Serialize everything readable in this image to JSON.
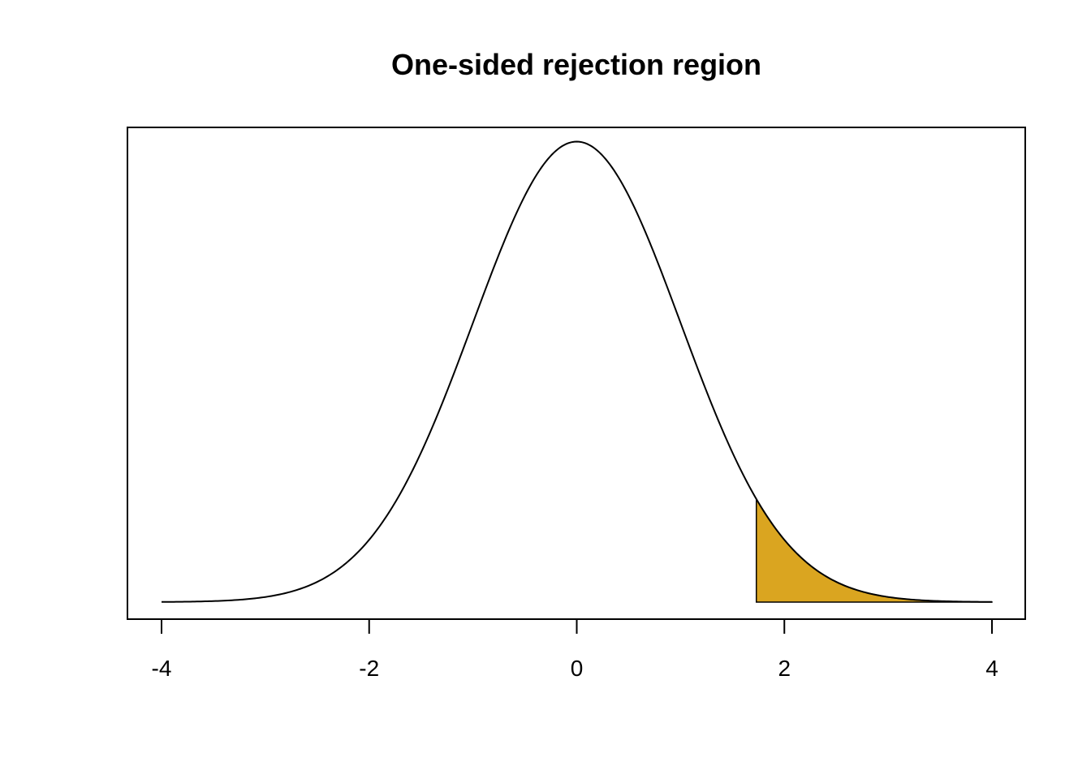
{
  "chart_data": {
    "type": "area",
    "title": "One-sided rejection region",
    "xlabel": "",
    "ylabel": "",
    "xlim": [
      -4,
      4
    ],
    "ylim": [
      0,
      0.4
    ],
    "x_ticks": [
      -4,
      -2,
      0,
      2,
      4
    ],
    "x_tick_labels": [
      "-4",
      "-2",
      "0",
      "2",
      "4"
    ],
    "grid": false,
    "legend": "none",
    "series": [
      {
        "kind": "line",
        "function": "standard normal density",
        "x_range": [
          -4,
          4
        ],
        "color": "#000000"
      },
      {
        "kind": "shaded-region",
        "x_range": [
          1.73,
          4
        ],
        "fill_color": "#DAA520",
        "edge_color": "#000000"
      }
    ]
  }
}
